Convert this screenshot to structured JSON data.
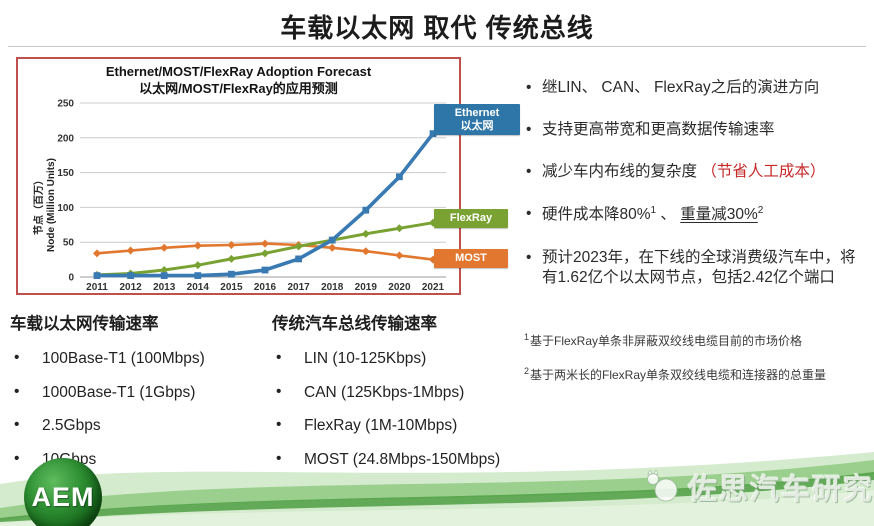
{
  "slide": {
    "title": "车载以太网 取代 传统总线"
  },
  "chart": {
    "title_en": "Ethernet/MOST/FlexRay Adoption Forecast",
    "title_zh": "以太网/MOST/FlexRay的应用预测",
    "y_axis_label_zh": "节点（百万）",
    "y_axis_label_en": "Node (Million Units)",
    "legend": [
      {
        "line1": "Ethernet",
        "line2": "以太网",
        "color": "#2f76a8"
      },
      {
        "line1": "FlexRay",
        "line2": "",
        "color": "#79a233"
      },
      {
        "line1": "MOST",
        "line2": "",
        "color": "#e2782f"
      }
    ],
    "border_color": "#c0504d"
  },
  "chart_data": {
    "type": "line",
    "title": "Ethernet/MOST/FlexRay Adoption Forecast",
    "subtitle": "以太网/MOST/FlexRay的应用预测",
    "xlabel": "",
    "ylabel": "节点（百万）/ Node (Million Units)",
    "x": [
      "2011",
      "2012",
      "2013",
      "2014",
      "2015",
      "2016",
      "2017",
      "2018",
      "2019",
      "2020",
      "2021"
    ],
    "series": [
      {
        "name": "MOST",
        "color": "#e2782f",
        "marker": "diamond",
        "line_width": 2.6,
        "values": [
          34,
          38,
          42,
          45,
          46,
          48,
          46,
          42,
          37,
          31,
          25
        ]
      },
      {
        "name": "FlexRay",
        "color": "#79a233",
        "marker": "diamond",
        "line_width": 3.0,
        "values": [
          3,
          5,
          10,
          17,
          26,
          34,
          44,
          53,
          62,
          70,
          78
        ]
      },
      {
        "name": "Ethernet 以太网",
        "color": "#3a7ab3",
        "marker": "square",
        "line_width": 3.6,
        "values": [
          2,
          2,
          2,
          2,
          4,
          10,
          26,
          53,
          96,
          144,
          206
        ]
      }
    ],
    "ylim": [
      0,
      250
    ],
    "yticks": [
      0,
      50,
      100,
      150,
      200,
      250
    ],
    "grid": true,
    "legend_position": "right-overlay"
  },
  "right_bullets": {
    "b1": "继LIN、 CAN、 FlexRay之后的演进方向",
    "b2": "支持更高带宽和更高数据传输速率",
    "b3_main": "减少车内布线的复杂度 ",
    "b3_highlight": "（节省人工成本）",
    "b4_part1": "硬件成本降80%",
    "b4_sup1": "1",
    "b4_sep": " 、 ",
    "b4_part2": "重量减30%",
    "b4_sup2": "2",
    "b5": "预计2023年，在下线的全球消费级汽车中，将有1.62亿个以太网节点，包括2.42亿个端口"
  },
  "footnotes": [
    {
      "sup": "1",
      "text": "基于FlexRay单条非屏蔽双绞线电缆目前的市场价格"
    },
    {
      "sup": "2",
      "text": "基于两米长的FlexRay单条双绞线电缆和连接器的总重量"
    }
  ],
  "ethernet_rates": {
    "heading": "车载以太网传输速率",
    "items": [
      "100Base-T1 (100Mbps)",
      "1000Base-T1 (1Gbps)",
      "2.5Gbps",
      "10Gbps"
    ]
  },
  "bus_rates": {
    "heading": "传统汽车总线传输速率",
    "items": [
      "LIN (10-125Kbps)",
      "CAN (125Kbps-1Mbps)",
      "FlexRay (1M-10Mbps)",
      "MOST (24.8Mbps-150Mbps)"
    ]
  },
  "footer": {
    "logo_text": "AEM",
    "watermark": "佐思汽车研究"
  }
}
